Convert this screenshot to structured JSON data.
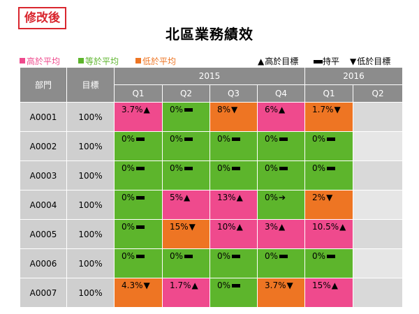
{
  "tag": "修改後",
  "title": "北區業務績效",
  "legend": {
    "high_avg": {
      "label": "高於平均",
      "color": "#ef4a8d"
    },
    "eq_avg": {
      "label": "等於平均",
      "color": "#5db52c"
    },
    "low_avg": {
      "label": "低於平均",
      "color": "#ee7523"
    },
    "above_target": {
      "symbol": "▲",
      "label": "高於目標"
    },
    "flat": {
      "label": "持平"
    },
    "below_target": {
      "symbol": "▼",
      "label": "低於目標"
    }
  },
  "table": {
    "header": {
      "dept": "部門",
      "goal": "目標",
      "years": [
        "2015",
        "2016"
      ],
      "quarters": [
        "Q1",
        "Q2",
        "Q3",
        "Q4",
        "Q1",
        "Q2"
      ]
    },
    "rows": [
      {
        "dept": "A0001",
        "goal": "100%",
        "cells": [
          {
            "value": "3.7%",
            "sym": "▲",
            "color": "pink"
          },
          {
            "value": "0%",
            "sym": "dash",
            "color": "green"
          },
          {
            "value": "8%",
            "sym": "▼",
            "color": "orange"
          },
          {
            "value": "6%",
            "sym": "▲",
            "color": "pink"
          },
          {
            "value": "1.7%",
            "sym": "▼",
            "color": "orange"
          },
          {
            "value": "",
            "sym": "",
            "color": "gray"
          }
        ]
      },
      {
        "dept": "A0002",
        "goal": "100%",
        "cells": [
          {
            "value": "0%",
            "sym": "dash",
            "color": "green"
          },
          {
            "value": "0%",
            "sym": "dash",
            "color": "green"
          },
          {
            "value": "0%",
            "sym": "dash",
            "color": "green"
          },
          {
            "value": "0%",
            "sym": "dash",
            "color": "green"
          },
          {
            "value": "0%",
            "sym": "dash",
            "color": "green"
          },
          {
            "value": "",
            "sym": "",
            "color": "lightgray"
          }
        ]
      },
      {
        "dept": "A0003",
        "goal": "100%",
        "cells": [
          {
            "value": "0%",
            "sym": "dash",
            "color": "green"
          },
          {
            "value": "0%",
            "sym": "dash",
            "color": "green"
          },
          {
            "value": "0%",
            "sym": "dash",
            "color": "green"
          },
          {
            "value": "0%",
            "sym": "dash",
            "color": "green"
          },
          {
            "value": "0%",
            "sym": "dash",
            "color": "green"
          },
          {
            "value": "",
            "sym": "",
            "color": "gray"
          }
        ]
      },
      {
        "dept": "A0004",
        "goal": "100%",
        "cells": [
          {
            "value": "0%",
            "sym": "dash",
            "color": "green"
          },
          {
            "value": "5%",
            "sym": "▲",
            "color": "pink"
          },
          {
            "value": "13%",
            "sym": "▲",
            "color": "pink"
          },
          {
            "value": "0%",
            "sym": "➔",
            "color": "green"
          },
          {
            "value": "2%",
            "sym": "▼",
            "color": "orange"
          },
          {
            "value": "",
            "sym": "",
            "color": "lightgray"
          }
        ]
      },
      {
        "dept": "A0005",
        "goal": "100%",
        "cells": [
          {
            "value": "0%",
            "sym": "dash",
            "color": "green"
          },
          {
            "value": "15%",
            "sym": "▼",
            "color": "orange"
          },
          {
            "value": "10%",
            "sym": "▲",
            "color": "pink"
          },
          {
            "value": "3%",
            "sym": "▲",
            "color": "pink"
          },
          {
            "value": "10.5%",
            "sym": "▲",
            "color": "pink"
          },
          {
            "value": "",
            "sym": "",
            "color": "gray"
          }
        ]
      },
      {
        "dept": "A0006",
        "goal": "100%",
        "cells": [
          {
            "value": "0%",
            "sym": "dash",
            "color": "green"
          },
          {
            "value": "0%",
            "sym": "dash",
            "color": "green"
          },
          {
            "value": "0%",
            "sym": "dash",
            "color": "green"
          },
          {
            "value": "0%",
            "sym": "dash",
            "color": "green"
          },
          {
            "value": "0%",
            "sym": "dash",
            "color": "green"
          },
          {
            "value": "",
            "sym": "",
            "color": "lightgray"
          }
        ]
      },
      {
        "dept": "A0007",
        "goal": "100%",
        "cells": [
          {
            "value": "4.3%",
            "sym": "▼",
            "color": "orange"
          },
          {
            "value": "1.7%",
            "sym": "▲",
            "color": "pink"
          },
          {
            "value": "0%",
            "sym": "dash",
            "color": "green"
          },
          {
            "value": "3.7%",
            "sym": "▼",
            "color": "orange"
          },
          {
            "value": "15%",
            "sym": "▲",
            "color": "pink"
          },
          {
            "value": "",
            "sym": "",
            "color": "gray"
          }
        ]
      }
    ]
  }
}
